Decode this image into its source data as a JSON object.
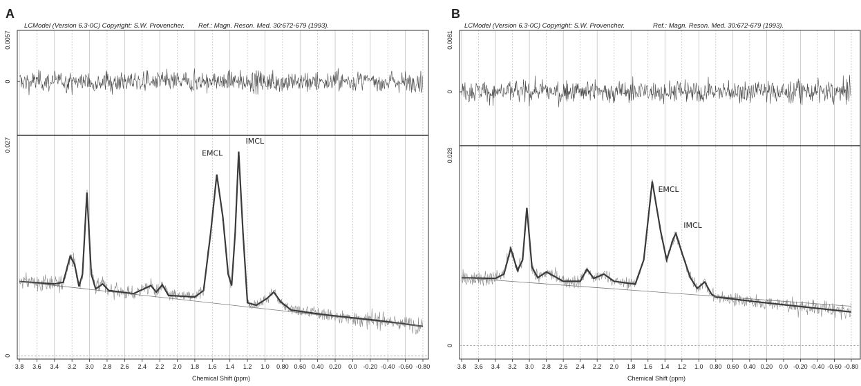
{
  "chart_data": [
    {
      "type": "line",
      "panel_label": "A",
      "header": "LCModel (Version 6.3-0C) Copyright: S.W. Provencher.",
      "reference": "Ref.: Magn. Reson. Med. 30:672-679 (1993).",
      "xlabel": "Chemical Shift (ppm)",
      "xlim": [
        3.8,
        -0.8
      ],
      "xticks": [
        3.8,
        3.6,
        3.4,
        3.2,
        {
          "value": 3,
          "label": "3.0"
        },
        2.8,
        2.6,
        2.4,
        2.2,
        {
          "value": 2,
          "label": "2.0"
        },
        1.8,
        1.6,
        1.4,
        1.2,
        {
          "value": 1,
          "label": "1.0"
        },
        {
          "value": 0.8,
          "label": "0.80"
        },
        {
          "value": 0.6,
          "label": "0.60"
        },
        {
          "value": 0.4,
          "label": "0.40"
        },
        {
          "value": 0.2,
          "label": "0.20"
        },
        {
          "value": 0,
          "label": "0.0"
        },
        {
          "value": -0.2,
          "label": "-0.20"
        },
        {
          "value": -0.4,
          "label": "-0.40"
        },
        {
          "value": -0.6,
          "label": "-0.60"
        },
        {
          "value": -0.8,
          "label": "-0.80"
        }
      ],
      "residual_ylim": [
        -0.006,
        0.0057
      ],
      "residual_yticks": [
        0.0057,
        0
      ],
      "ylim": [
        -0.0004,
        0.027
      ],
      "yticks": [
        0.027,
        0
      ],
      "annotations": [
        "EMCL",
        "IMCL"
      ],
      "series": [
        {
          "name": "fit",
          "color": "#3a3a3a",
          "x": [
            3.8,
            3.4,
            3.3,
            3.22,
            3.17,
            3.12,
            3.08,
            3.03,
            2.98,
            2.93,
            2.85,
            2.78,
            2.5,
            2.3,
            2.24,
            2.17,
            2.1,
            1.8,
            1.7,
            1.62,
            1.55,
            1.48,
            1.42,
            1.38,
            1.34,
            1.3,
            1.25,
            1.2,
            1.1,
            0.98,
            0.9,
            0.82,
            0.7,
            0.3,
            -0.3,
            -0.8
          ],
          "values": [
            0.0091,
            0.0088,
            0.009,
            0.0122,
            0.0112,
            0.0085,
            0.01,
            0.02,
            0.01,
            0.0082,
            0.0088,
            0.008,
            0.0076,
            0.0086,
            0.0078,
            0.0087,
            0.0074,
            0.0072,
            0.008,
            0.015,
            0.0222,
            0.017,
            0.01,
            0.0086,
            0.015,
            0.025,
            0.015,
            0.0065,
            0.0062,
            0.007,
            0.0078,
            0.0066,
            0.0056,
            0.005,
            0.0043,
            0.0036
          ]
        },
        {
          "name": "baseline",
          "color": "#777777",
          "x": [
            3.8,
            -0.8
          ],
          "values": [
            0.0091,
            0.0036
          ]
        }
      ]
    },
    {
      "type": "line",
      "panel_label": "B",
      "header": "LCModel (Version 6.3-0C) Copyright: S.W. Provencher.",
      "reference": "Ref.: Magn. Reson. Med. 30:672-679 (1993).",
      "xlabel": "Chemical Shift (ppm)",
      "xlim": [
        3.8,
        -0.8
      ],
      "xticks": [
        3.8,
        3.6,
        3.4,
        3.2,
        {
          "value": 3,
          "label": "3.0"
        },
        2.8,
        2.6,
        2.4,
        2.2,
        {
          "value": 2,
          "label": "2.0"
        },
        1.8,
        1.6,
        1.4,
        1.2,
        {
          "value": 1,
          "label": "1.0"
        },
        {
          "value": 0.8,
          "label": "0.80"
        },
        {
          "value": 0.6,
          "label": "0.60"
        },
        {
          "value": 0.4,
          "label": "0.40"
        },
        {
          "value": 0.2,
          "label": "0.20"
        },
        {
          "value": 0,
          "label": "0.0"
        },
        {
          "value": -0.2,
          "label": "-0.20"
        },
        {
          "value": -0.4,
          "label": "-0.40"
        },
        {
          "value": -0.6,
          "label": "-0.60"
        },
        {
          "value": -0.8,
          "label": "-0.80"
        }
      ],
      "residual_ylim": [
        -0.0071,
        0.0081
      ],
      "residual_yticks": [
        0.0081,
        0
      ],
      "ylim": [
        -0.0019,
        0.028
      ],
      "yticks": [
        0.028,
        0
      ],
      "annotations": [
        "EMCL",
        "IMCL"
      ],
      "series": [
        {
          "name": "fit",
          "color": "#3a3a3a",
          "x": [
            3.8,
            3.4,
            3.3,
            3.22,
            3.14,
            3.08,
            3.03,
            2.97,
            2.9,
            2.8,
            2.72,
            2.6,
            2.4,
            2.32,
            2.24,
            2.12,
            2.0,
            1.75,
            1.65,
            1.55,
            1.45,
            1.38,
            1.3,
            1.27,
            1.2,
            1.1,
            1.02,
            0.93,
            0.85,
            0.8,
            0.3,
            -0.8
          ],
          "values": [
            0.0095,
            0.0094,
            0.01,
            0.0136,
            0.0105,
            0.012,
            0.0193,
            0.011,
            0.0095,
            0.0103,
            0.0098,
            0.009,
            0.009,
            0.0107,
            0.0094,
            0.01,
            0.009,
            0.0086,
            0.012,
            0.023,
            0.016,
            0.012,
            0.015,
            0.0157,
            0.013,
            0.0095,
            0.008,
            0.0089,
            0.0072,
            0.0068,
            0.0061,
            0.0047
          ]
        },
        {
          "name": "baseline",
          "color": "#777777",
          "x": [
            3.8,
            -0.8
          ],
          "values": [
            0.0095,
            0.0055
          ]
        }
      ]
    }
  ]
}
